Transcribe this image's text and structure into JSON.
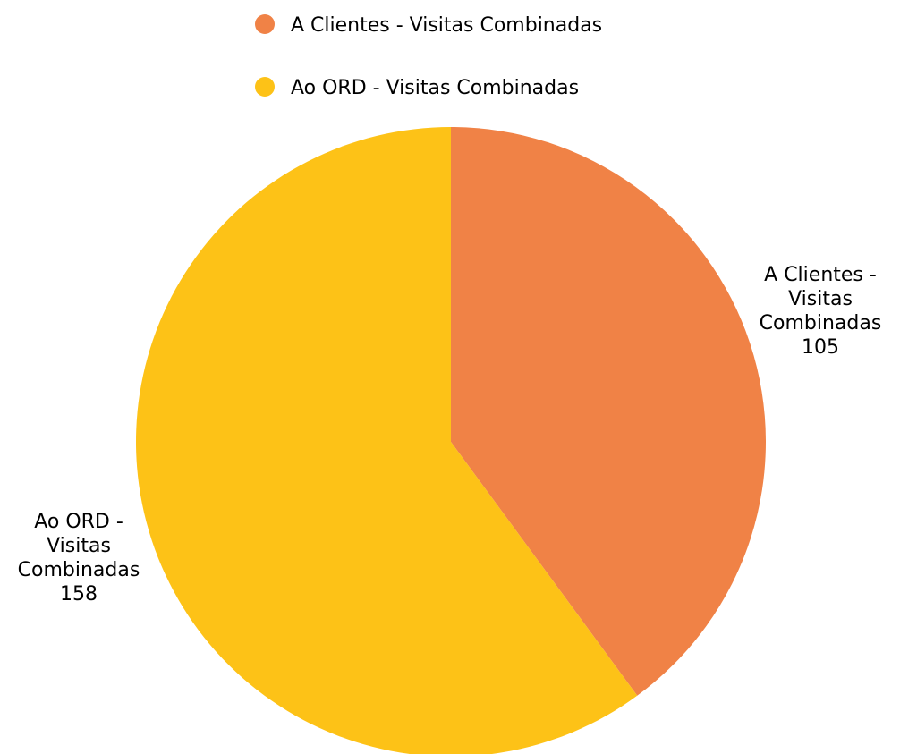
{
  "chart_data": {
    "type": "pie",
    "slices": [
      {
        "name": "A Clientes - Visitas Combinadas",
        "label_lines": [
          "A Clientes -",
          "Visitas",
          "Combinadas"
        ],
        "value": 105,
        "value_label": "105",
        "color": "#F08246"
      },
      {
        "name": "Ao ORD - Visitas Combinadas",
        "label_lines": [
          "Ao ORD -",
          "Visitas",
          "Combinadas"
        ],
        "value": 158,
        "value_label": "158",
        "color": "#FDC217"
      }
    ],
    "legend": {
      "position": "top"
    },
    "start_angle": "12 o'clock",
    "direction": "clockwise"
  }
}
